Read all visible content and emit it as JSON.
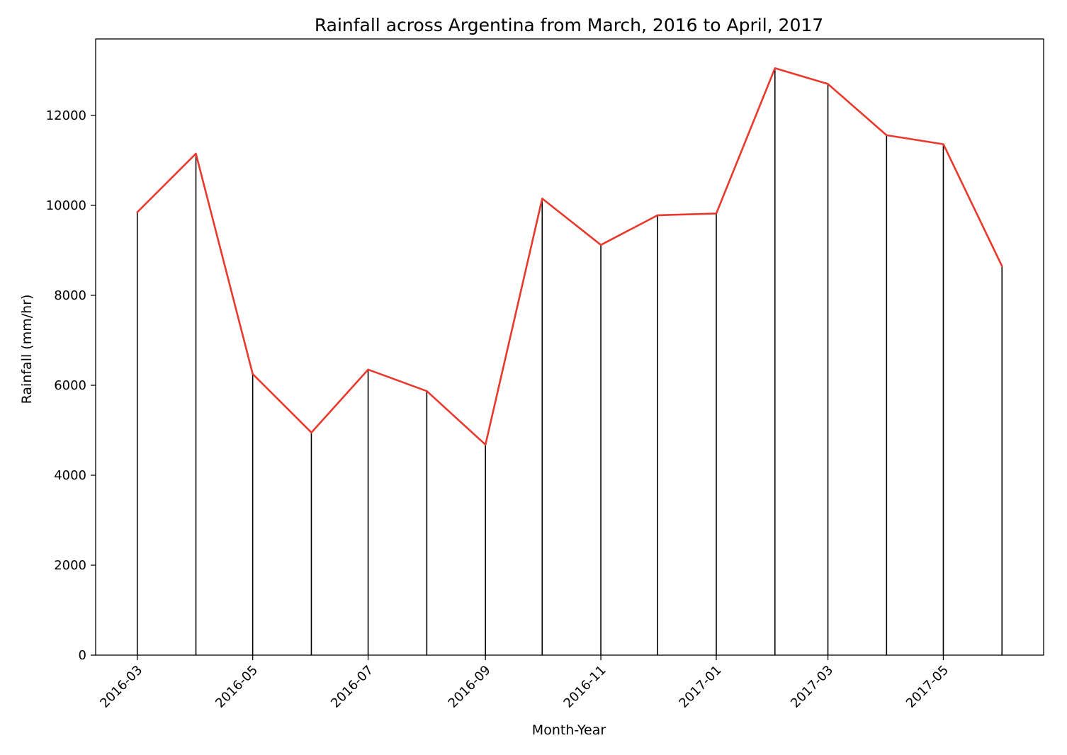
{
  "chart_data": {
    "type": "line",
    "title": "Rainfall across Argentina from March, 2016 to April, 2017",
    "xlabel": "Month-Year",
    "ylabel": "Rainfall (mm/hr)",
    "x": [
      "2016-03-01",
      "2016-04-01",
      "2016-05-01",
      "2016-06-01",
      "2016-07-01",
      "2016-08-01",
      "2016-09-01",
      "2016-10-01",
      "2016-11-01",
      "2016-12-01",
      "2017-01-01",
      "2017-02-01",
      "2017-03-01",
      "2017-04-01",
      "2017-05-01",
      "2017-06-01"
    ],
    "series": [
      {
        "values": [
          9850,
          11150,
          6250,
          4950,
          6350,
          5870,
          4680,
          10150,
          9120,
          9780,
          9820,
          13050,
          12700,
          11560,
          11360,
          8650
        ],
        "color": "#e8392c"
      }
    ],
    "stem_color": "#000000",
    "xlim": [
      "2016-02-08",
      "2017-06-23"
    ],
    "ylim": [
      0,
      13700
    ],
    "xticks": [
      "2016-03",
      "2016-05",
      "2016-07",
      "2016-09",
      "2016-11",
      "2017-01",
      "2017-03",
      "2017-05"
    ],
    "yticks": [
      0,
      2000,
      4000,
      6000,
      8000,
      10000,
      12000
    ],
    "grid": false,
    "legend": false
  }
}
